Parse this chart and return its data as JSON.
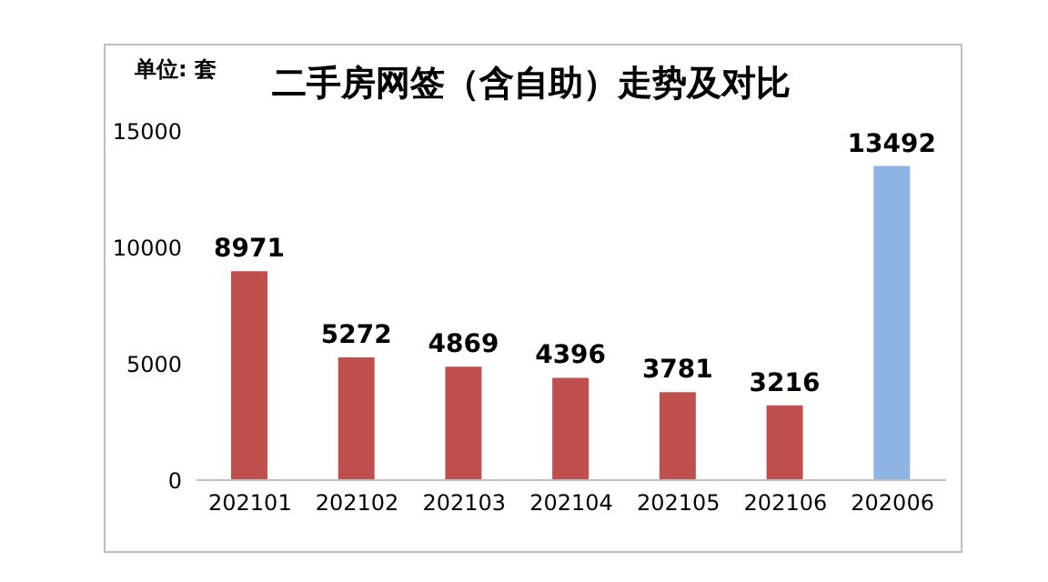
{
  "chart_data": {
    "type": "bar",
    "title": "二手房网签（含自助）走势及对比",
    "annotations": [
      "单位: 套"
    ],
    "categories": [
      "202101",
      "202102",
      "202103",
      "202104",
      "202105",
      "202106",
      "202006"
    ],
    "values": [
      8971,
      5272,
      4869,
      4396,
      3781,
      3216,
      13492
    ],
    "colors": [
      "#c0504d",
      "#c0504d",
      "#c0504d",
      "#c0504d",
      "#c0504d",
      "#c0504d",
      "#8db4e2"
    ],
    "ylim": [
      0,
      15000
    ],
    "yticks": [
      0,
      5000,
      10000,
      15000
    ],
    "grid": false,
    "data_labels": true
  }
}
